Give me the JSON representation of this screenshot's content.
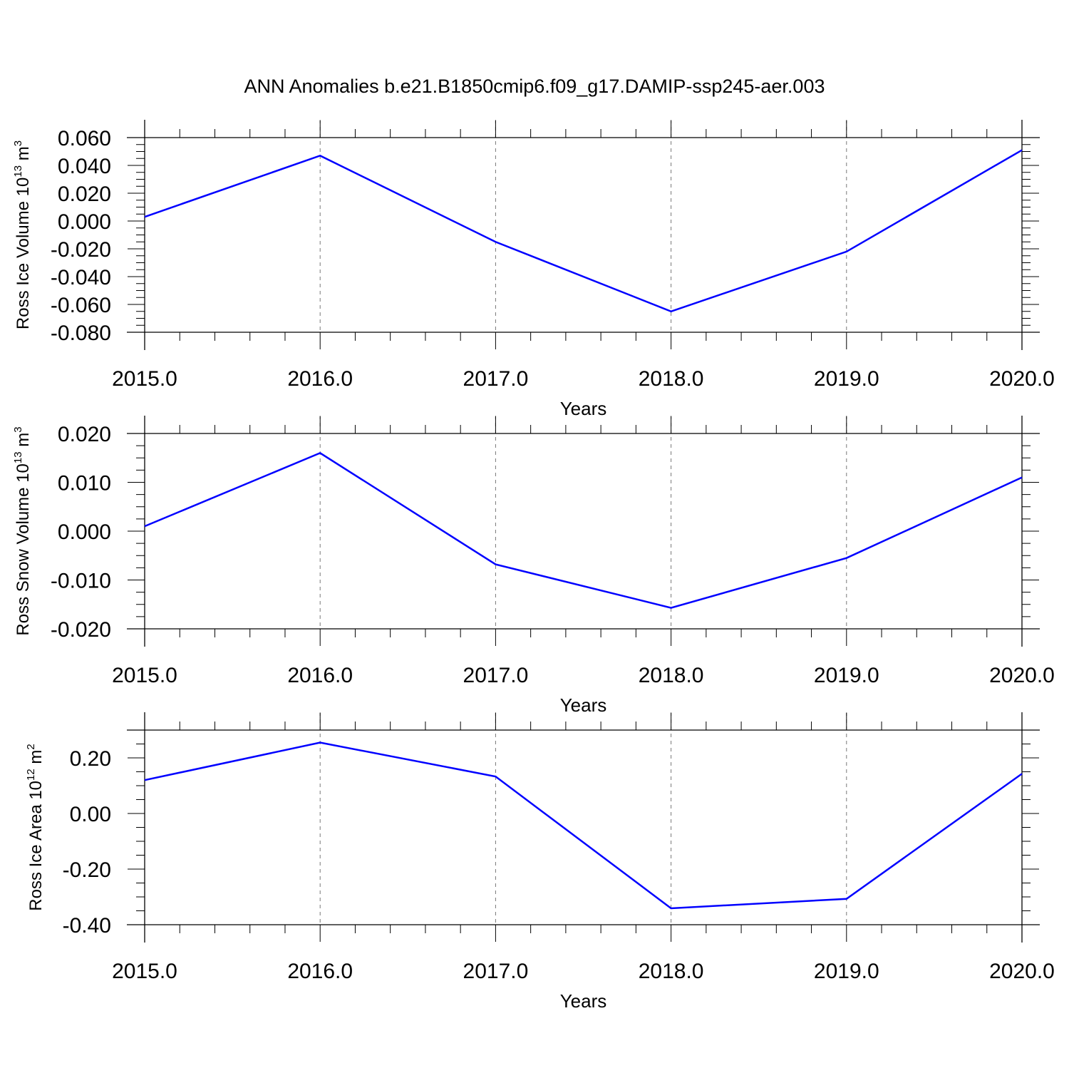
{
  "title": "ANN Anomalies b.e21.B1850cmip6.f09_g17.DAMIP-ssp245-aer.003",
  "line_color": "#0000ff",
  "chart_data": [
    {
      "type": "line",
      "x": [
        2015,
        2016,
        2017,
        2018,
        2019,
        2020
      ],
      "series": [
        {
          "values": [
            0.003,
            0.047,
            -0.015,
            -0.065,
            -0.022,
            0.051
          ]
        }
      ],
      "xlabel": "Years",
      "ylabel_text": "Ross Ice Volume 10",
      "ylabel_exp": "13",
      "ylabel_unit": " m",
      "ylabel_unit_exp": "3",
      "xlim": [
        2015,
        2020
      ],
      "ylim": [
        -0.08,
        0.06
      ],
      "yticks": [
        0.06,
        0.04,
        0.02,
        0.0,
        -0.02,
        -0.04,
        -0.06,
        -0.08
      ],
      "ytick_labels": [
        "0.060",
        "0.040",
        "0.020",
        "0.000",
        "-0.020",
        "-0.040",
        "-0.060",
        "-0.080"
      ],
      "xticks": [
        2015,
        2016,
        2017,
        2018,
        2019,
        2020
      ],
      "xtick_labels": [
        "2015.0",
        "2016.0",
        "2017.0",
        "2018.0",
        "2019.0",
        "2020.0"
      ],
      "grid": "vertical-dashed"
    },
    {
      "type": "line",
      "x": [
        2015,
        2016,
        2017,
        2018,
        2019,
        2020
      ],
      "series": [
        {
          "values": [
            0.001,
            0.016,
            -0.0068,
            -0.0157,
            -0.0055,
            0.011
          ]
        }
      ],
      "xlabel": "Years",
      "ylabel_text": "Ross Snow Volume 10",
      "ylabel_exp": "13",
      "ylabel_unit": " m",
      "ylabel_unit_exp": "3",
      "xlim": [
        2015,
        2020
      ],
      "ylim": [
        -0.02,
        0.02
      ],
      "yticks": [
        0.02,
        0.01,
        0.0,
        -0.01,
        -0.02
      ],
      "ytick_labels": [
        "0.020",
        "0.010",
        "0.000",
        "-0.010",
        "-0.020"
      ],
      "xticks": [
        2015,
        2016,
        2017,
        2018,
        2019,
        2020
      ],
      "xtick_labels": [
        "2015.0",
        "2016.0",
        "2017.0",
        "2018.0",
        "2019.0",
        "2020.0"
      ],
      "grid": "vertical-dashed"
    },
    {
      "type": "line",
      "x": [
        2015,
        2016,
        2017,
        2018,
        2019,
        2020
      ],
      "series": [
        {
          "values": [
            0.12,
            0.255,
            0.133,
            -0.341,
            -0.307,
            0.143
          ]
        }
      ],
      "xlabel": "Years",
      "ylabel_text": "Ross Ice Area 10",
      "ylabel_exp": "12",
      "ylabel_unit": " m",
      "ylabel_unit_exp": "2",
      "xlim": [
        2015,
        2020
      ],
      "ylim": [
        -0.4,
        0.3
      ],
      "yticks": [
        0.2,
        0.0,
        -0.2,
        -0.4
      ],
      "ytick_labels": [
        "0.20",
        "0.00",
        "-0.20",
        "-0.40"
      ],
      "xticks": [
        2015,
        2016,
        2017,
        2018,
        2019,
        2020
      ],
      "xtick_labels": [
        "2015.0",
        "2016.0",
        "2017.0",
        "2018.0",
        "2019.0",
        "2020.0"
      ],
      "grid": "vertical-dashed"
    }
  ]
}
